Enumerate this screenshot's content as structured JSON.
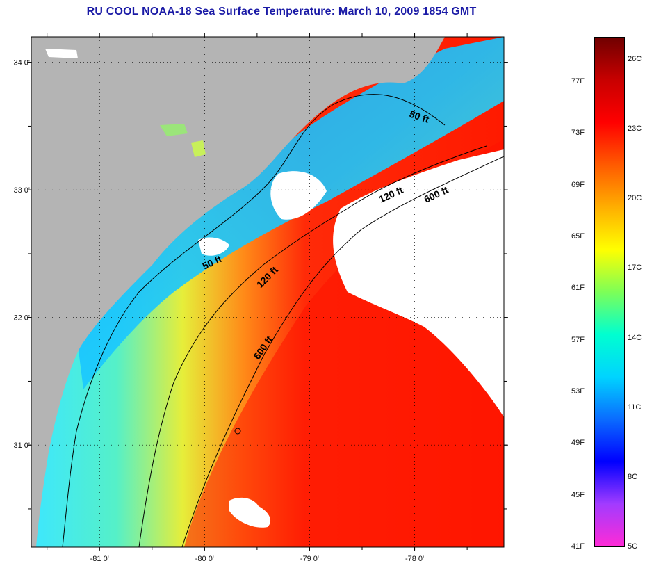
{
  "title": "RU COOL  NOAA-18  Sea Surface Temperature:  March 10, 2009 1854 GMT",
  "map": {
    "lon_range": [
      -81.65,
      -77.15
    ],
    "lat_range": [
      30.2,
      34.2
    ],
    "lon_ticks": [
      {
        "value": -81,
        "label": "-81 0'"
      },
      {
        "value": -80,
        "label": "-80 0'"
      },
      {
        "value": -79,
        "label": "-79 0'"
      },
      {
        "value": -78,
        "label": "-78 0'"
      }
    ],
    "lat_ticks": [
      {
        "value": 34,
        "label": "34 0'"
      },
      {
        "value": 33,
        "label": "33 0'"
      },
      {
        "value": 32,
        "label": "32 0'"
      },
      {
        "value": 31,
        "label": "31 0'"
      }
    ],
    "isobath_labels": {
      "shallow_north": "50 ft",
      "shallow_south": "50 ft",
      "mid_north": "120 ft",
      "mid_south": "120 ft",
      "deep_north": "600 ft",
      "deep_south": "600 ft"
    },
    "land_color": "#b4b4b4",
    "cloud_color": "#ffffff"
  },
  "colorbar": {
    "fahrenheit_labels": [
      "77F",
      "73F",
      "69F",
      "65F",
      "61F",
      "57F",
      "53F",
      "49F",
      "45F",
      "41F"
    ],
    "celsius_labels": [
      "26C",
      "23C",
      "20C",
      "17C",
      "14C",
      "11C",
      "8C",
      "5C"
    ],
    "stops": [
      "#ff2bd6",
      "#a23bff",
      "#0000ff",
      "#0a6cff",
      "#00d4ff",
      "#00ffd0",
      "#7dff57",
      "#ffff00",
      "#ffae00",
      "#ff5a00",
      "#ff0000",
      "#c80000",
      "#700000"
    ]
  }
}
